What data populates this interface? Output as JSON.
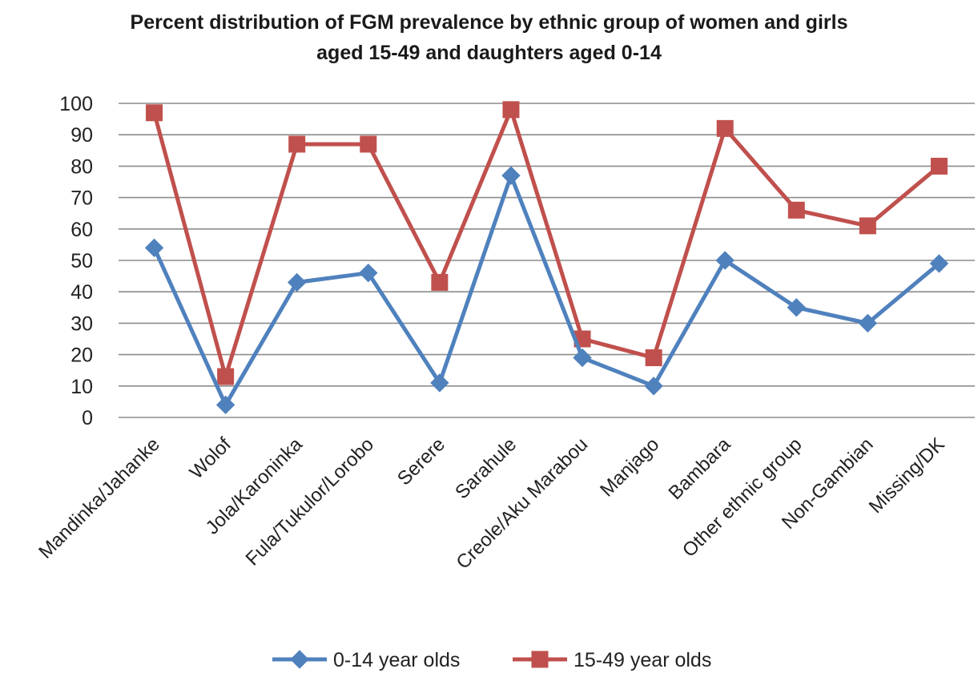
{
  "chart_data": {
    "type": "line",
    "title_lines": [
      "Percent distribution of FGM prevalence by ethnic group of women and girls",
      "aged 15-49 and daughters aged 0-14"
    ],
    "xlabel": "",
    "ylabel": "",
    "categories": [
      "Mandinka/Jahanke",
      "Wolof",
      "Jola/Karoninka",
      "Fula/Tukulor/Lorobo",
      "Serere",
      "Sarahule",
      "Creole/Aku Marabou",
      "Manjago",
      "Bambara",
      "Other ethnic group",
      "Non-Gambian",
      "Missing/DK"
    ],
    "y_ticks": [
      "0",
      "10",
      "20",
      "30",
      "40",
      "50",
      "60",
      "70",
      "80",
      "90",
      "100"
    ],
    "ylim": [
      0,
      100
    ],
    "grid": true,
    "legend_position": "bottom",
    "series": [
      {
        "name": "0-14 year olds",
        "color": "#4f81bd",
        "marker": "diamond",
        "values": [
          54,
          4,
          43,
          46,
          11,
          77,
          19,
          10,
          50,
          35,
          30,
          49
        ]
      },
      {
        "name": "15-49 year olds",
        "color": "#c0504d",
        "marker": "square",
        "values": [
          97,
          13,
          87,
          87,
          43,
          98,
          25,
          19,
          92,
          66,
          61,
          80
        ]
      }
    ]
  }
}
